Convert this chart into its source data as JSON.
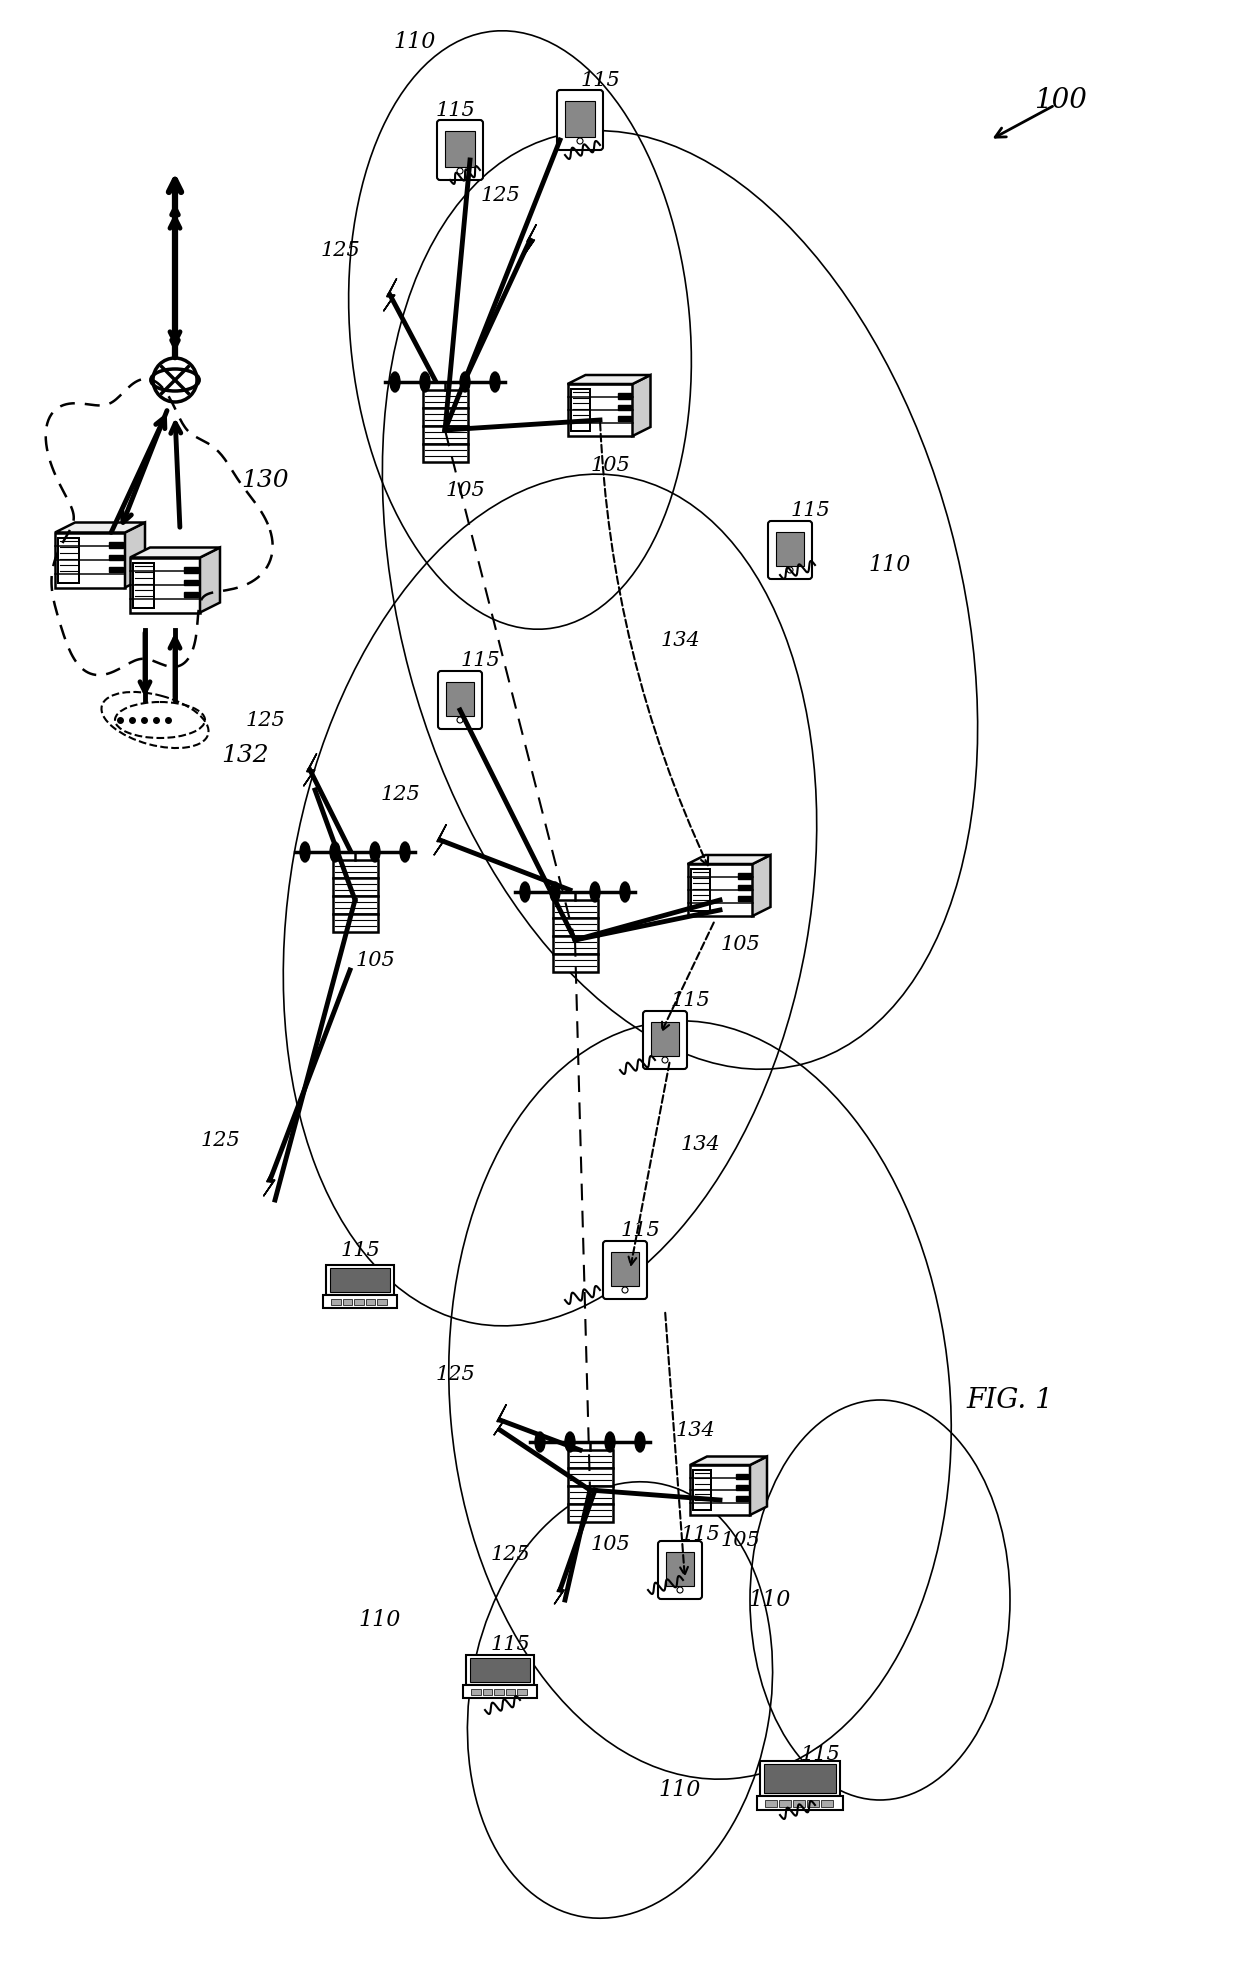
{
  "title": "FIG. 1",
  "label_100": "100",
  "label_110": "110",
  "label_115": "115",
  "label_105": "105",
  "label_125": "125",
  "label_130": "130",
  "label_132": "132",
  "label_134": "134",
  "bg_color": "#ffffff",
  "line_color": "#000000",
  "dashed_color": "#000000"
}
